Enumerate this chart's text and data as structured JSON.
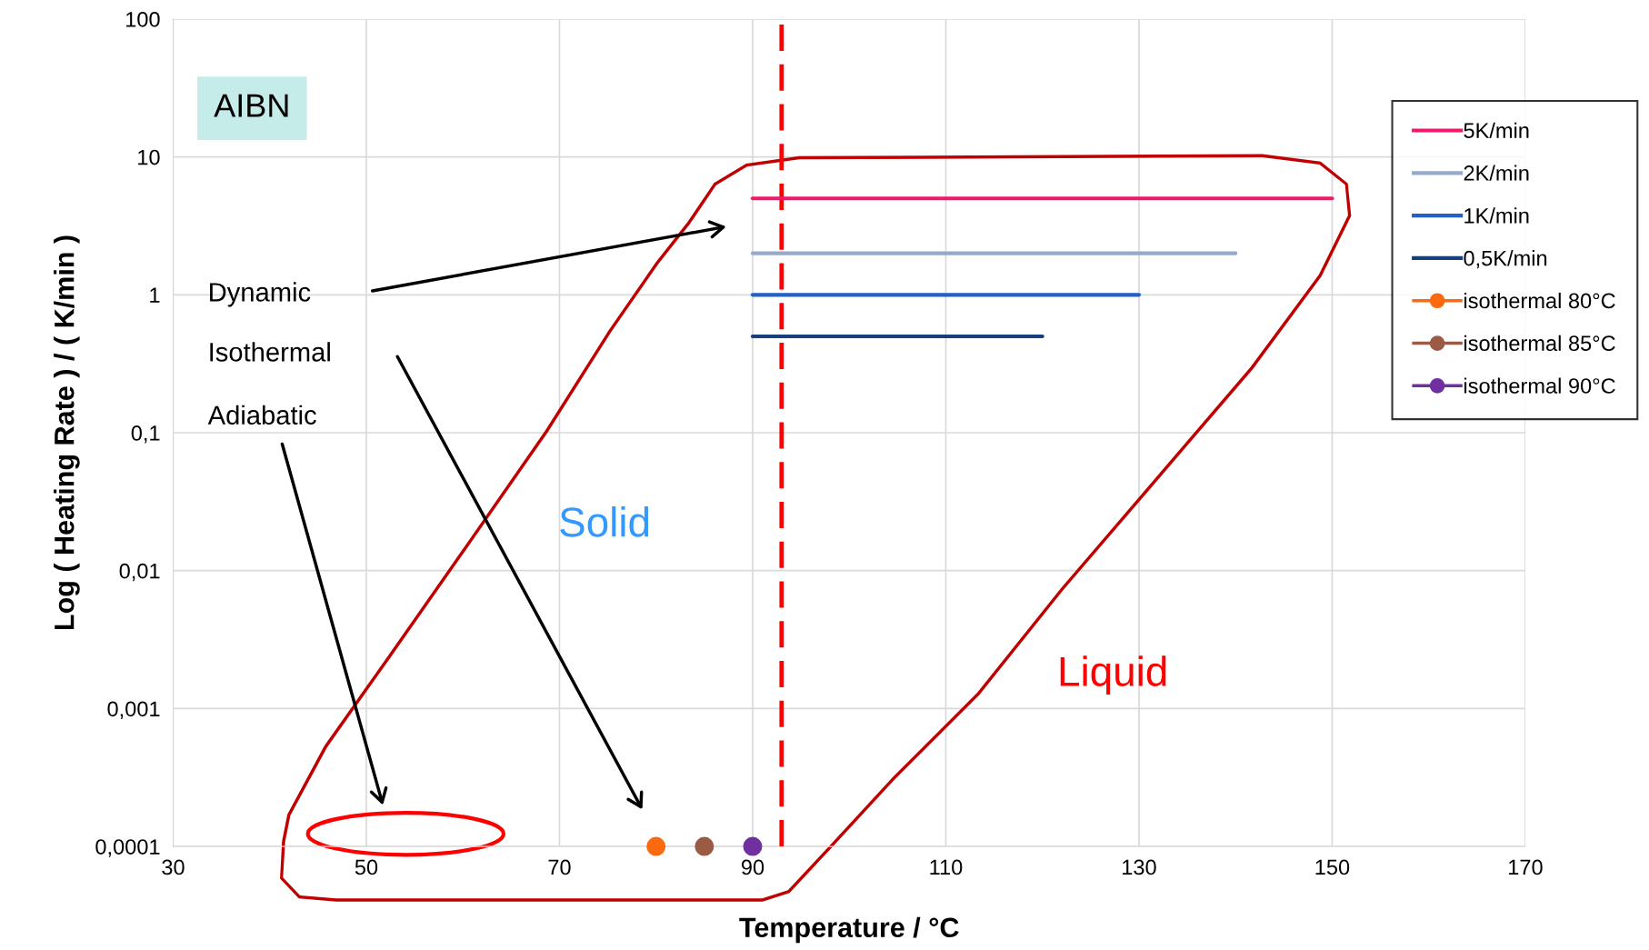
{
  "chart_data": {
    "type": "line",
    "xlabel": "Temperature / °C",
    "ylabel": "Log ( Heating Rate ) / ( K/min )",
    "series": [
      {
        "name": "5K/min",
        "color": "#f0186a",
        "x": [
          90,
          150
        ],
        "values": [
          5,
          5
        ]
      },
      {
        "name": "2K/min",
        "color": "#97a9cb",
        "x": [
          90,
          140
        ],
        "values": [
          2,
          2
        ]
      },
      {
        "name": "1K/min",
        "color": "#2160c4",
        "x": [
          90,
          130
        ],
        "values": [
          1,
          1
        ]
      },
      {
        "name": "0,5K/min",
        "color": "#173f7c",
        "x": [
          90,
          120
        ],
        "values": [
          0.5,
          0.5
        ]
      },
      {
        "name": "isothermal 80°C",
        "type": "scatter",
        "marker": "circle",
        "color": "#fb6a10",
        "x": [
          80
        ],
        "values": [
          0.0001
        ]
      },
      {
        "name": "isothermal 85°C",
        "type": "scatter",
        "marker": "circle",
        "color": "#9a5a44",
        "x": [
          85
        ],
        "values": [
          0.0001
        ]
      },
      {
        "name": "isothermal 90°C",
        "type": "scatter",
        "marker": "circle",
        "color": "#7030a0",
        "x": [
          90
        ],
        "values": [
          0.0001
        ]
      }
    ],
    "log": "y",
    "xlim": [
      30,
      170
    ],
    "xticks": [
      30,
      50,
      70,
      90,
      110,
      130,
      150,
      170
    ],
    "ylim": [
      0.0001,
      100
    ],
    "yticks": [
      {
        "value": 0.0001,
        "label": "0,0001"
      },
      {
        "value": 0.001,
        "label": "0,001"
      },
      {
        "value": 0.01,
        "label": "0,01"
      },
      {
        "value": 0.1,
        "label": "0,1"
      },
      1,
      10,
      100
    ],
    "grid": true,
    "legend": "top right",
    "ref_lines": [
      {
        "axis": "x",
        "value": 93,
        "color": "#ff0000",
        "line_style": "dashed"
      }
    ],
    "annotations": [
      "AIBN",
      "Solid",
      "Liquid",
      "Dynamic",
      "Isothermal",
      "Adiabatic"
    ]
  }
}
